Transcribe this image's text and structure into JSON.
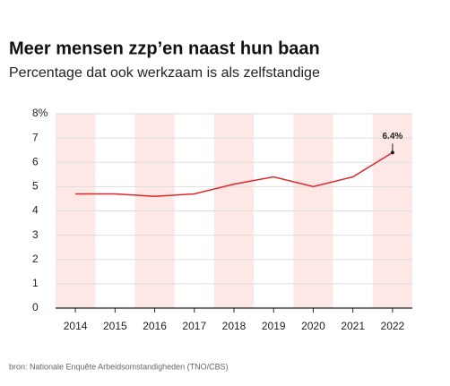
{
  "chart_data": {
    "type": "line",
    "title": "Meer mensen zzp’en naast hun baan",
    "subtitle": "Percentage dat ook werkzaam is als zelfstandige",
    "source": "bron: Nationale Enquête Arbeidsomstandigheden (TNO/CBS)",
    "categories": [
      "2014",
      "2015",
      "2016",
      "2017",
      "2018",
      "2019",
      "2020",
      "2021",
      "2022"
    ],
    "values": [
      4.7,
      4.7,
      4.6,
      4.7,
      5.1,
      5.4,
      5.0,
      5.4,
      6.4
    ],
    "value_labels": [
      null,
      null,
      null,
      null,
      null,
      null,
      null,
      null,
      "6.4%"
    ],
    "color": "#e0262b",
    "band_color": "#fde8e6",
    "ylim": [
      0,
      8
    ],
    "yticks": [
      0,
      1,
      2,
      3,
      4,
      5,
      6,
      7,
      {
        "value": 8,
        "label": "8%"
      }
    ],
    "grid": true
  }
}
